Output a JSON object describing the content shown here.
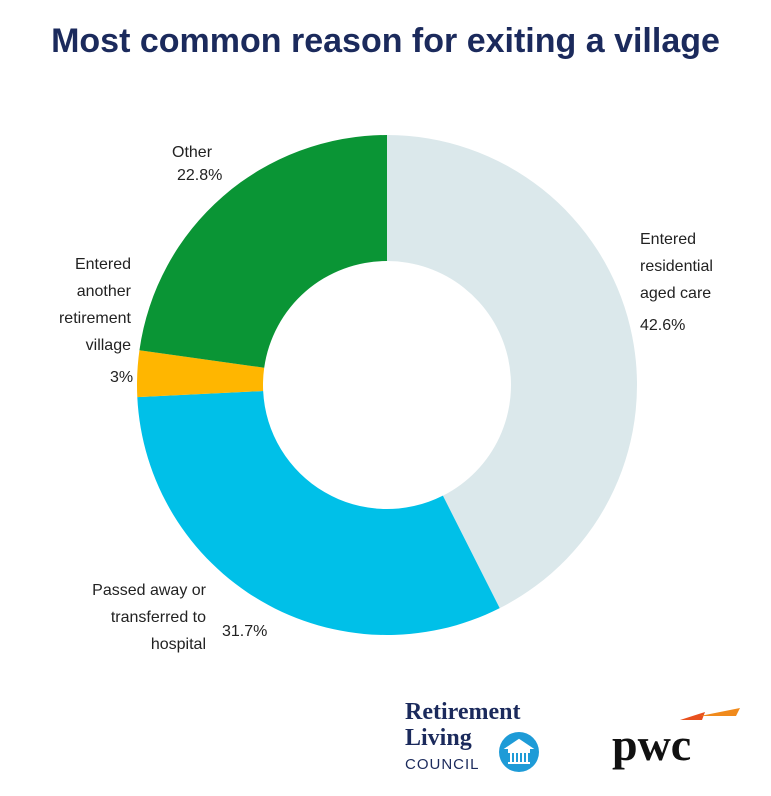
{
  "chart_data": {
    "type": "donut",
    "title": "Most common reason for exiting a village",
    "categories": [
      "Entered\nresidential\naged care",
      "Passed away or\ntransferred to\nhospital",
      "Entered\nanother\nretirement\nvillage",
      "Other"
    ],
    "values": [
      42.6,
      31.7,
      3,
      22.8
    ],
    "value_labels": [
      "42.6%",
      "31.7%",
      "3%",
      "22.8%"
    ],
    "colors": [
      "#dbe8eb",
      "#00c0e8",
      "#ffb600",
      "#0a9535"
    ]
  },
  "branding": {
    "council_line1": "Retirement",
    "council_line2": "Living",
    "council_line3": "COUNCIL",
    "pwc": "pwc"
  }
}
